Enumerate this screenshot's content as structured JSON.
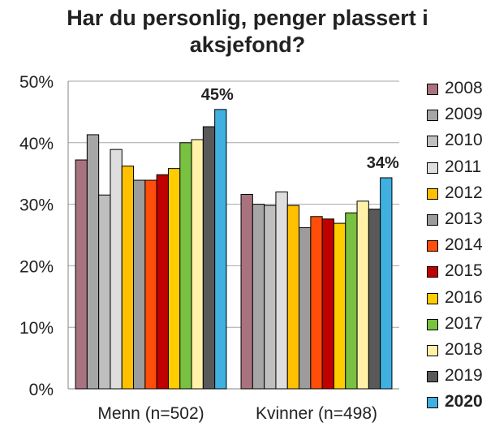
{
  "chart_data": {
    "type": "bar",
    "title": [
      "Har du personlig, penger plassert i",
      "aksjefond?"
    ],
    "categories": [
      "Menn (n=502)",
      "Kvinner (n=498)"
    ],
    "yticks": [
      "0%",
      "10%",
      "20%",
      "30%",
      "40%",
      "50%"
    ],
    "ylim": [
      0,
      50
    ],
    "grid": true,
    "legend_position": "right",
    "highlight_series": "2020",
    "series": [
      {
        "name": "2008",
        "color": "#a8737f",
        "values": [
          37.2,
          31.6
        ]
      },
      {
        "name": "2009",
        "color": "#a6a6a6",
        "values": [
          41.3,
          30.0
        ]
      },
      {
        "name": "2010",
        "color": "#bfbfbf",
        "values": [
          31.5,
          29.8
        ]
      },
      {
        "name": "2011",
        "color": "#dedede",
        "values": [
          38.9,
          32.0
        ]
      },
      {
        "name": "2012",
        "color": "#ffc000",
        "values": [
          36.2,
          29.8
        ]
      },
      {
        "name": "2013",
        "color": "#9c9c9c",
        "values": [
          33.9,
          26.2
        ]
      },
      {
        "name": "2014",
        "color": "#ff4d0a",
        "values": [
          33.9,
          28.0
        ]
      },
      {
        "name": "2015",
        "color": "#c00000",
        "values": [
          34.8,
          27.6
        ]
      },
      {
        "name": "2016",
        "color": "#ffcc00",
        "values": [
          35.8,
          26.9
        ]
      },
      {
        "name": "2017",
        "color": "#79c141",
        "values": [
          40.0,
          28.6
        ]
      },
      {
        "name": "2018",
        "color": "#fff2a8",
        "values": [
          40.5,
          30.5
        ]
      },
      {
        "name": "2019",
        "color": "#595959",
        "values": [
          42.6,
          29.2
        ]
      },
      {
        "name": "2020",
        "color": "#3fb0e0",
        "values": [
          45.4,
          34.3
        ]
      }
    ],
    "data_labels": [
      {
        "category_index": 0,
        "series": "2020",
        "text": "45%"
      },
      {
        "category_index": 1,
        "series": "2020",
        "text": "34%"
      }
    ]
  }
}
